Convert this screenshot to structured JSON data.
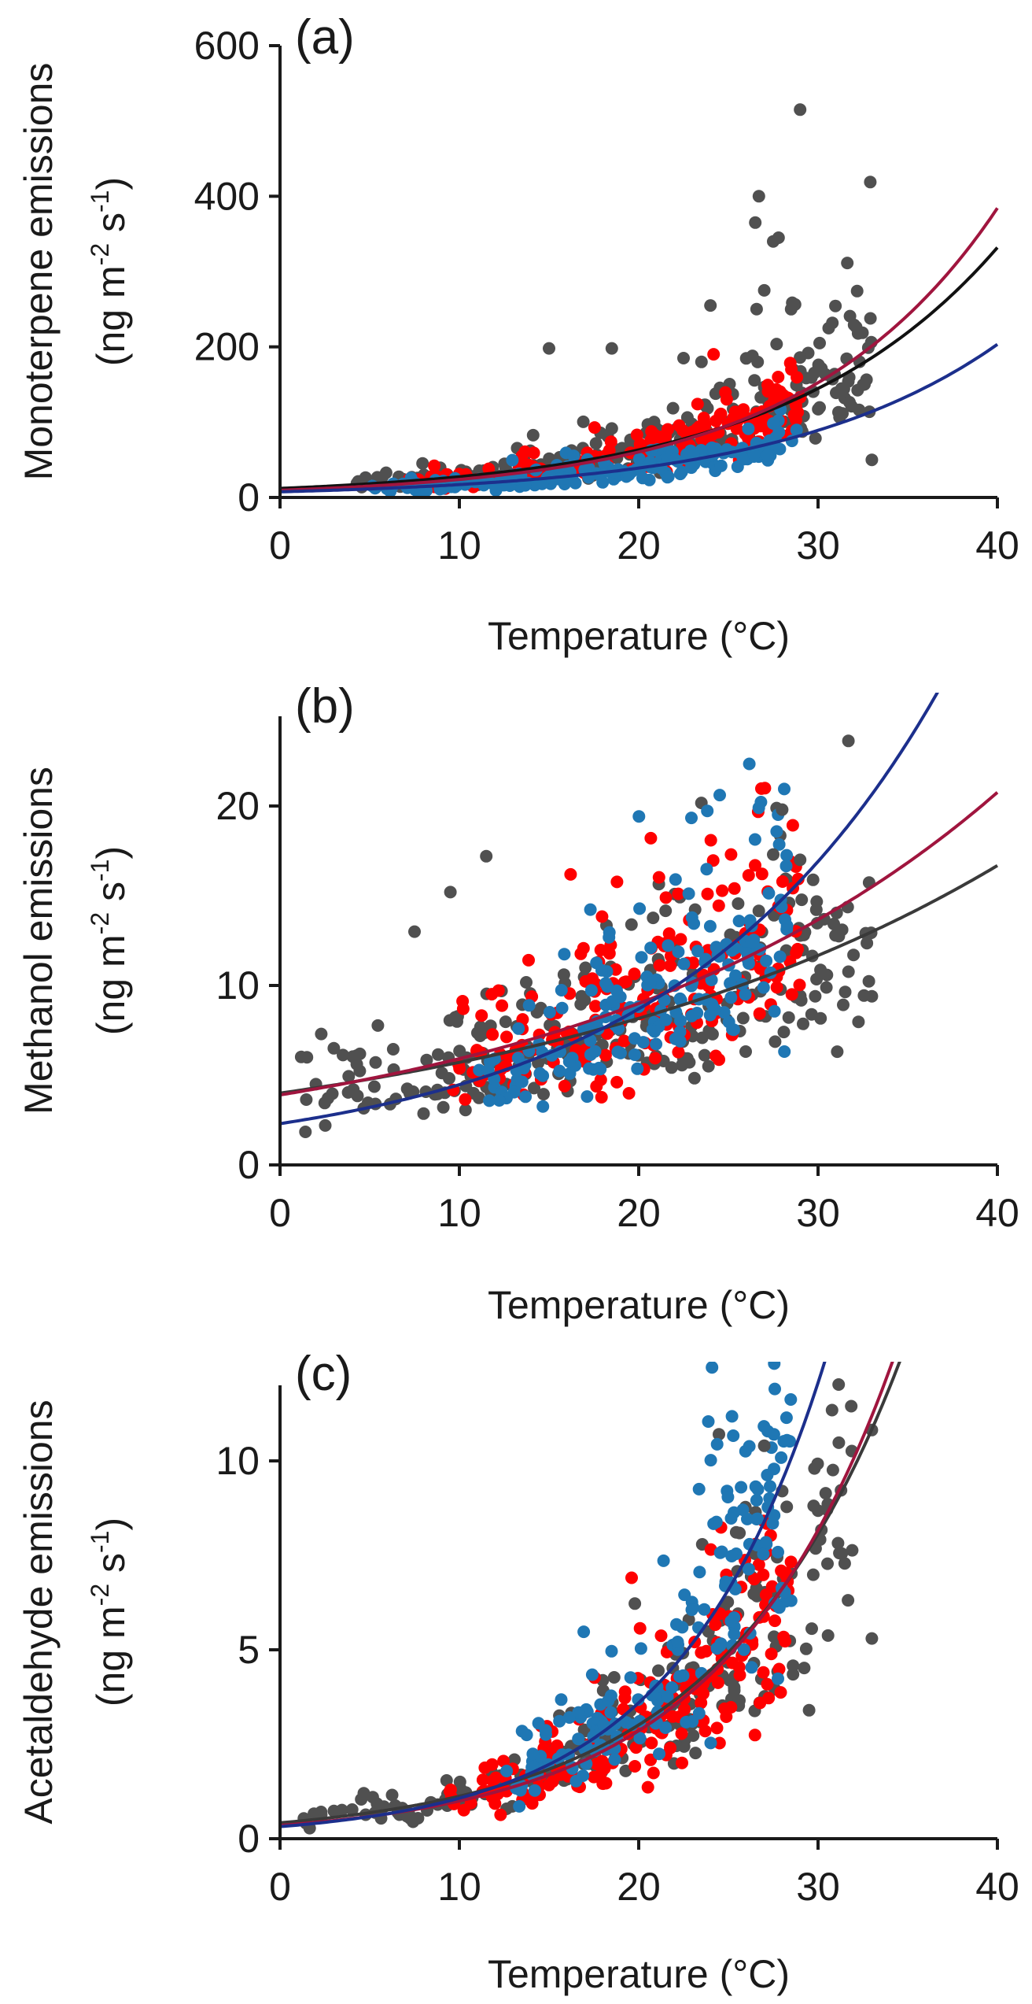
{
  "chart_data": [
    {
      "type": "scatter",
      "panel_label": "(a)",
      "xlabel": "Temperature (°C)",
      "ylabel_line1": "Monoterpene emissions",
      "ylabel_line2_parts": [
        "(ng m",
        "-2",
        " s",
        "-1",
        ")"
      ],
      "xlim": [
        0,
        40
      ],
      "ylim": [
        0,
        600
      ],
      "x_ticks": [
        0,
        10,
        20,
        30,
        40
      ],
      "y_ticks": [
        0,
        200,
        400,
        600
      ],
      "x_tick_labels": [
        "0",
        "10",
        "20",
        "30",
        "40"
      ],
      "y_tick_labels": [
        "0",
        "200",
        "400",
        "600"
      ],
      "grid": false,
      "series": [
        {
          "color": "#505050",
          "x_range": [
            4,
            33
          ],
          "fit": {
            "a": 12.0,
            "b": 0.083
          }
        },
        {
          "color": "#ff0000",
          "x_range": [
            7,
            29
          ],
          "fit": {
            "a": 9.5,
            "b": 0.0925
          }
        },
        {
          "color": "#1f77b4",
          "x_range": [
            5,
            29
          ],
          "fit": {
            "a": 7.5,
            "b": 0.0825
          }
        }
      ],
      "fit_line_colors": [
        "#111111",
        "#a0153e",
        "#1c2f8c"
      ],
      "outliers": [
        [
          29,
          515
        ],
        [
          26.7,
          400
        ],
        [
          26.5,
          365
        ],
        [
          27.5,
          340
        ],
        [
          27.8,
          345
        ],
        [
          15,
          198
        ],
        [
          18.5,
          198
        ],
        [
          24,
          255
        ],
        [
          27,
          275
        ],
        [
          28.5,
          250
        ],
        [
          33,
          50
        ],
        [
          22.5,
          185
        ],
        [
          23.5,
          180
        ]
      ]
    },
    {
      "type": "scatter",
      "panel_label": "(b)",
      "xlabel": "Temperature (°C)",
      "ylabel_line1": "Methanol emissions",
      "ylabel_line2_parts": [
        "(ng m",
        "-2",
        " s",
        "-1",
        ")"
      ],
      "xlim": [
        0,
        40
      ],
      "ylim": [
        0,
        25
      ],
      "x_ticks": [
        0,
        10,
        20,
        30,
        40
      ],
      "y_ticks": [
        0,
        10,
        20
      ],
      "x_tick_labels": [
        "0",
        "10",
        "20",
        "30",
        "40"
      ],
      "y_tick_labels": [
        "0",
        "10",
        "20"
      ],
      "grid": false,
      "series": [
        {
          "color": "#505050",
          "x_range": [
            1,
            33
          ],
          "fit": {
            "a": 4.0,
            "b": 0.0357
          }
        },
        {
          "color": "#ff0000",
          "x_range": [
            9,
            29
          ],
          "fit": {
            "a": 3.9,
            "b": 0.0418
          }
        },
        {
          "color": "#1f77b4",
          "x_range": [
            11,
            28.5
          ],
          "fit": {
            "a": 2.3,
            "b": 0.0665
          }
        }
      ],
      "fit_line_colors": [
        "#3a3a3a",
        "#a0153e",
        "#1c2f8c"
      ],
      "outliers": [
        [
          11.5,
          17.2
        ],
        [
          9.5,
          15.2
        ],
        [
          7.5,
          13.0
        ],
        [
          1.5,
          6.0
        ],
        [
          2.3,
          7.3
        ],
        [
          3.0,
          6.5
        ],
        [
          2.0,
          4.5
        ],
        [
          33,
          9.4
        ],
        [
          28,
          19.8
        ],
        [
          27.5,
          17.3
        ],
        [
          29,
          17.0
        ]
      ]
    },
    {
      "type": "scatter",
      "panel_label": "(c)",
      "xlabel": "Temperature (°C)",
      "ylabel_line1": "Acetaldehyde emissions",
      "ylabel_line2_parts": [
        "(ng m",
        "-2",
        " s",
        "-1",
        ")"
      ],
      "xlim": [
        0,
        40
      ],
      "ylim": [
        0,
        12
      ],
      "x_ticks": [
        0,
        10,
        20,
        30,
        40
      ],
      "y_ticks": [
        0,
        5,
        10
      ],
      "x_tick_labels": [
        "0",
        "10",
        "20",
        "30",
        "40"
      ],
      "y_tick_labels": [
        "0",
        "5",
        "10"
      ],
      "grid": false,
      "series": [
        {
          "color": "#505050",
          "x_range": [
            0.5,
            33
          ],
          "fit": {
            "a": 0.42,
            "b": 0.0985
          }
        },
        {
          "color": "#ff0000",
          "x_range": [
            9,
            28.5
          ],
          "fit": {
            "a": 0.35,
            "b": 0.105
          }
        },
        {
          "color": "#1f77b4",
          "x_range": [
            12.5,
            28.5
          ],
          "fit": {
            "a": 0.32,
            "b": 0.121
          }
        }
      ],
      "fit_line_colors": [
        "#3a3a3a",
        "#a0153e",
        "#1c2f8c"
      ],
      "outliers": [
        [
          27,
          10.4
        ],
        [
          33,
          5.3
        ],
        [
          29.5,
          3.4
        ],
        [
          29.8,
          9.8
        ],
        [
          28,
          9.2
        ]
      ]
    }
  ]
}
